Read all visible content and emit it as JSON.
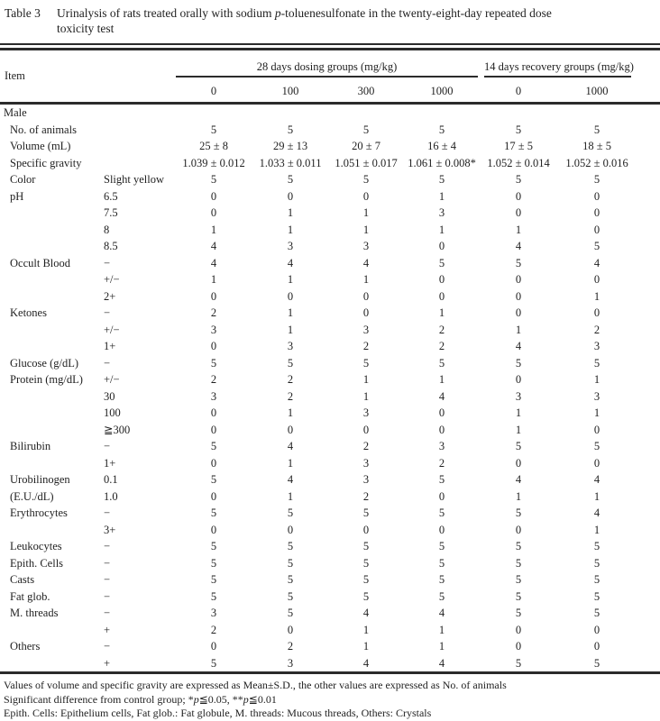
{
  "colors": {
    "background": "#ffffff",
    "text": "#1f1f1f",
    "rule": "#2b2b2b"
  },
  "caption": {
    "label": "Table 3",
    "line1_pre": "Urinalysis of rats treated orally with sodium ",
    "line1_italic": "p",
    "line1_post": "-toluenesulfonate in the twenty-eight-day repeated dose",
    "line2": "toxicity test"
  },
  "header": {
    "item_label": "Item",
    "group_dosing": "28 days dosing groups (mg/kg)",
    "group_recovery": "14 days recovery groups (mg/kg)",
    "doses": [
      "0",
      "100",
      "300",
      "1000",
      "0",
      "1000"
    ]
  },
  "rows": [
    {
      "section": "Male"
    },
    {
      "item": "No. of animals",
      "sub": "",
      "values": [
        "5",
        "5",
        "5",
        "5",
        "5",
        "5"
      ]
    },
    {
      "item": "Volume (mL)",
      "sub": "",
      "values": [
        "25 ± 8",
        "29 ± 13",
        "20 ± 7",
        "16 ± 4",
        "17 ± 5",
        "18 ± 5"
      ]
    },
    {
      "item": "Specific gravity",
      "sub": "",
      "values": [
        "1.039 ± 0.012",
        "1.033 ± 0.011",
        "1.051 ± 0.017",
        "1.061 ± 0.008*",
        "1.052 ± 0.014",
        "1.052 ± 0.016"
      ]
    },
    {
      "item": "Color",
      "sub": "Slight yellow",
      "values": [
        "5",
        "5",
        "5",
        "5",
        "5",
        "5"
      ]
    },
    {
      "item": "pH",
      "sub": "6.5",
      "values": [
        "0",
        "0",
        "0",
        "1",
        "0",
        "0"
      ]
    },
    {
      "item": "",
      "sub": "7.5",
      "values": [
        "0",
        "1",
        "1",
        "3",
        "0",
        "0"
      ]
    },
    {
      "item": "",
      "sub": "8",
      "values": [
        "1",
        "1",
        "1",
        "1",
        "1",
        "0"
      ]
    },
    {
      "item": "",
      "sub": "8.5",
      "values": [
        "4",
        "3",
        "3",
        "0",
        "4",
        "5"
      ]
    },
    {
      "item": "Occult Blood",
      "sub": "−",
      "values": [
        "4",
        "4",
        "4",
        "5",
        "5",
        "4"
      ]
    },
    {
      "item": "",
      "sub": "+/−",
      "values": [
        "1",
        "1",
        "1",
        "0",
        "0",
        "0"
      ]
    },
    {
      "item": "",
      "sub": "2+",
      "values": [
        "0",
        "0",
        "0",
        "0",
        "0",
        "1"
      ]
    },
    {
      "item": "Ketones",
      "sub": "−",
      "values": [
        "2",
        "1",
        "0",
        "1",
        "0",
        "0"
      ]
    },
    {
      "item": "",
      "sub": "+/−",
      "values": [
        "3",
        "1",
        "3",
        "2",
        "1",
        "2"
      ]
    },
    {
      "item": "",
      "sub": "1+",
      "values": [
        "0",
        "3",
        "2",
        "2",
        "4",
        "3"
      ]
    },
    {
      "item": "Glucose (g/dL)",
      "sub": "−",
      "values": [
        "5",
        "5",
        "5",
        "5",
        "5",
        "5"
      ]
    },
    {
      "item": "Protein (mg/dL)",
      "sub": "+/−",
      "values": [
        "2",
        "2",
        "1",
        "1",
        "0",
        "1"
      ]
    },
    {
      "item": "",
      "sub": "30",
      "values": [
        "3",
        "2",
        "1",
        "4",
        "3",
        "3"
      ]
    },
    {
      "item": "",
      "sub": "100",
      "values": [
        "0",
        "1",
        "3",
        "0",
        "1",
        "1"
      ]
    },
    {
      "item": "",
      "sub": "≧300",
      "values": [
        "0",
        "0",
        "0",
        "0",
        "1",
        "0"
      ]
    },
    {
      "item": "Bilirubin",
      "sub": "−",
      "values": [
        "5",
        "4",
        "2",
        "3",
        "5",
        "5"
      ]
    },
    {
      "item": "",
      "sub": "1+",
      "values": [
        "0",
        "1",
        "3",
        "2",
        "0",
        "0"
      ]
    },
    {
      "item": "Urobilinogen",
      "sub": "0.1",
      "values": [
        "5",
        "4",
        "3",
        "5",
        "4",
        "4"
      ]
    },
    {
      "item": "(E.U./dL)",
      "sub": "1.0",
      "values": [
        "0",
        "1",
        "2",
        "0",
        "1",
        "1"
      ]
    },
    {
      "item": "Erythrocytes",
      "sub": "−",
      "values": [
        "5",
        "5",
        "5",
        "5",
        "5",
        "4"
      ]
    },
    {
      "item": "",
      "sub": "3+",
      "values": [
        "0",
        "0",
        "0",
        "0",
        "0",
        "1"
      ]
    },
    {
      "item": "Leukocytes",
      "sub": "−",
      "values": [
        "5",
        "5",
        "5",
        "5",
        "5",
        "5"
      ]
    },
    {
      "item": "Epith. Cells",
      "sub": "−",
      "values": [
        "5",
        "5",
        "5",
        "5",
        "5",
        "5"
      ]
    },
    {
      "item": "Casts",
      "sub": "−",
      "values": [
        "5",
        "5",
        "5",
        "5",
        "5",
        "5"
      ]
    },
    {
      "item": "Fat glob.",
      "sub": "−",
      "values": [
        "5",
        "5",
        "5",
        "5",
        "5",
        "5"
      ]
    },
    {
      "item": "M. threads",
      "sub": "−",
      "values": [
        "3",
        "5",
        "4",
        "4",
        "5",
        "5"
      ]
    },
    {
      "item": "",
      "sub": "+",
      "values": [
        "2",
        "0",
        "1",
        "1",
        "0",
        "0"
      ]
    },
    {
      "item": "Others",
      "sub": "−",
      "values": [
        "0",
        "2",
        "1",
        "1",
        "0",
        "0"
      ]
    },
    {
      "item": "",
      "sub": "+",
      "values": [
        "5",
        "3",
        "4",
        "4",
        "5",
        "5"
      ]
    }
  ],
  "footnotes": {
    "line1": "Values of volume and specific gravity are expressed as Mean±S.D., the other values are expressed as No. of animals",
    "line2_pre": "Significant difference from control group; *",
    "line2_italic1": "p",
    "line2_mid": "≦0.05, **",
    "line2_italic2": "p",
    "line2_post": "≦0.01",
    "line3": "Epith. Cells: Epithelium cells, Fat glob.: Fat globule, M. threads: Mucous threads, Others: Crystals"
  }
}
